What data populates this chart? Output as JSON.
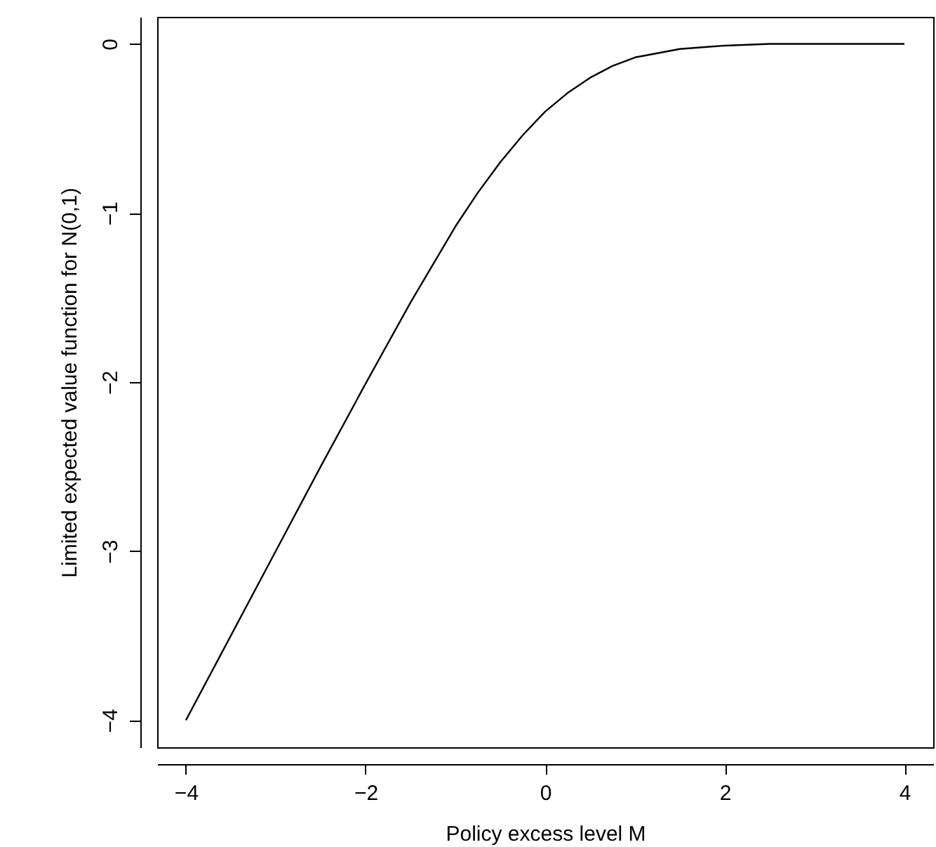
{
  "chart_data": {
    "type": "line",
    "xlabel": "Policy excess level M",
    "ylabel": "Limited expected value function for N(0,1)",
    "x": [
      -4,
      -3.5,
      -3,
      -2.5,
      -2,
      -1.5,
      -1,
      -0.75,
      -0.5,
      -0.25,
      0,
      0.25,
      0.5,
      0.75,
      1,
      1.5,
      2,
      2.5,
      3,
      3.5,
      4
    ],
    "series": [
      {
        "color": "#000000",
        "values": [
          -4,
          -3.5,
          -3,
          -2.5,
          -2.01,
          -1.53,
          -1.08,
          -0.88,
          -0.7,
          -0.54,
          -0.4,
          -0.29,
          -0.2,
          -0.13,
          -0.08,
          -0.03,
          -0.01,
          0,
          0,
          0,
          0
        ]
      }
    ],
    "xlim": [
      -4.32,
      4.32
    ],
    "ylim": [
      -4.16,
      0.16
    ],
    "xticks": [
      -4,
      -2,
      0,
      2,
      4
    ],
    "yticks": [
      -4,
      -3,
      -2,
      -1,
      0
    ],
    "grid": false,
    "marker": "none",
    "line_style": "solid"
  }
}
